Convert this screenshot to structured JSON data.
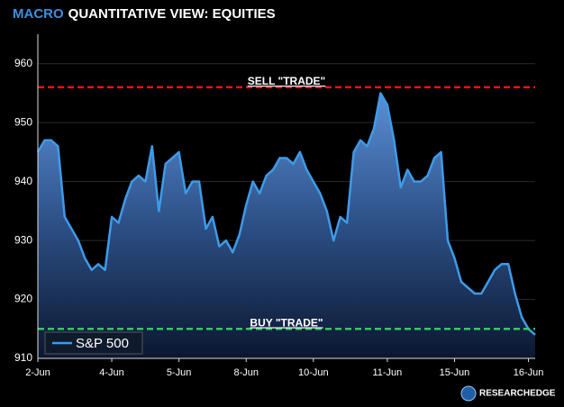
{
  "chart_data": {
    "type": "area",
    "title_parts": [
      {
        "text": "MACRO",
        "color": "#3d8fe0"
      },
      {
        "text": "QUANTITATIVE VIEW: EQUITIES",
        "color": "#ffffff"
      }
    ],
    "categories": [
      "2-Jun",
      null,
      null,
      null,
      null,
      null,
      null,
      null,
      null,
      null,
      null,
      "4-Jun",
      null,
      null,
      null,
      null,
      null,
      null,
      null,
      null,
      null,
      "5-Jun",
      null,
      null,
      null,
      null,
      null,
      null,
      null,
      null,
      null,
      "8-Jun",
      null,
      null,
      null,
      null,
      null,
      null,
      null,
      null,
      null,
      "10-Jun",
      null,
      null,
      null,
      null,
      null,
      null,
      null,
      null,
      null,
      null,
      "11-Jun",
      null,
      null,
      null,
      null,
      null,
      null,
      null,
      null,
      null,
      "15-Jun",
      null,
      null,
      null,
      null,
      null,
      null,
      null,
      null,
      null,
      null,
      "16-Jun",
      null
    ],
    "series": [
      {
        "name": "S&P 500",
        "color": "#3d9be9",
        "values": [
          945,
          947,
          947,
          946,
          934,
          932,
          930,
          927,
          925,
          926,
          925,
          934,
          933,
          937,
          940,
          941,
          940,
          946,
          935,
          943,
          944,
          945,
          938,
          940,
          940,
          932,
          934,
          929,
          930,
          928,
          931,
          936,
          940,
          938,
          941,
          942,
          944,
          944,
          943,
          945,
          942,
          940,
          938,
          935,
          930,
          934,
          933,
          945,
          947,
          946,
          949,
          955,
          953,
          947,
          939,
          942,
          940,
          940,
          941,
          944,
          945,
          930,
          927,
          923,
          922,
          921,
          921,
          923,
          925,
          926,
          926,
          921,
          917,
          915,
          914
        ]
      }
    ],
    "ylim": [
      910,
      965
    ],
    "yticks": [
      910,
      920,
      930,
      940,
      950,
      960
    ],
    "ref_lines": [
      {
        "label": "SELL \"TRADE\"",
        "value": 956,
        "color": "#e0161b"
      },
      {
        "label": "BUY \"TRADE\"",
        "value": 915,
        "color": "#2ecc5a"
      }
    ],
    "legend": "bottom-left",
    "logo": "RESEARCHEDGE"
  }
}
